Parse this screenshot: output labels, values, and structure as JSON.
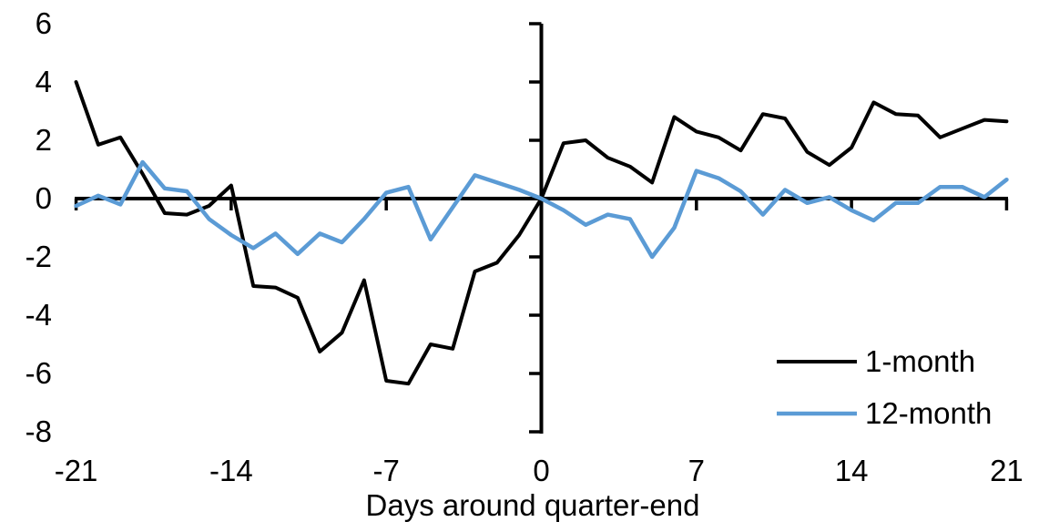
{
  "figure": {
    "background": "#ffffff",
    "axis_color": "#000000"
  },
  "chart_data": {
    "type": "line",
    "title": "",
    "xlabel": "Days around quarter-end",
    "ylabel": "",
    "xlim": [
      -21,
      21
    ],
    "ylim": [
      -8,
      6
    ],
    "grid": false,
    "legend_position": "inside-bottom-right",
    "x_ticks": [
      -21,
      -14,
      -7,
      0,
      7,
      14,
      21
    ],
    "y_ticks": [
      6,
      4,
      2,
      0,
      -2,
      -4,
      -6,
      -8
    ],
    "x": [
      -21,
      -20,
      -19,
      -18,
      -17,
      -16,
      -15,
      -14,
      -13,
      -12,
      -11,
      -10,
      -9,
      -8,
      -7,
      -6,
      -5,
      -4,
      -3,
      -2,
      -1,
      0,
      1,
      2,
      3,
      4,
      5,
      6,
      7,
      8,
      9,
      10,
      11,
      12,
      13,
      14,
      15,
      16,
      17,
      18,
      19,
      20,
      21
    ],
    "series": [
      {
        "name": "1-month",
        "color": "#000000",
        "stroke_width": 4,
        "values": [
          4.0,
          1.85,
          2.1,
          0.85,
          -0.5,
          -0.55,
          -0.25,
          0.45,
          -3.0,
          -3.05,
          -3.4,
          -5.25,
          -4.6,
          -2.8,
          -6.25,
          -6.35,
          -5.0,
          -5.15,
          -2.5,
          -2.2,
          -1.25,
          0.0,
          1.9,
          2.0,
          1.4,
          1.1,
          0.55,
          2.8,
          2.3,
          2.1,
          1.65,
          2.9,
          2.75,
          1.6,
          1.15,
          1.75,
          3.3,
          2.9,
          2.85,
          2.1,
          2.4,
          2.7,
          2.65
        ]
      },
      {
        "name": "12-month",
        "color": "#5B9BD5",
        "stroke_width": 4.5,
        "values": [
          -0.25,
          0.1,
          -0.2,
          1.25,
          0.35,
          0.25,
          -0.7,
          -1.25,
          -1.7,
          -1.2,
          -1.9,
          -1.2,
          -1.5,
          -0.7,
          0.2,
          0.4,
          -1.4,
          -0.3,
          0.8,
          0.55,
          0.3,
          0.0,
          -0.4,
          -0.9,
          -0.55,
          -0.7,
          -2.0,
          -1.0,
          0.95,
          0.7,
          0.25,
          -0.55,
          0.3,
          -0.15,
          0.05,
          -0.4,
          -0.75,
          -0.15,
          -0.15,
          0.4,
          0.4,
          0.05,
          0.65
        ]
      }
    ]
  }
}
